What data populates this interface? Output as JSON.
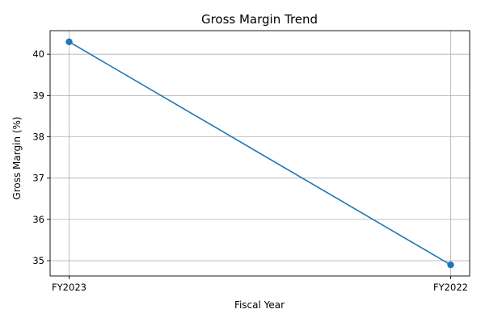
{
  "chart_data": {
    "type": "line",
    "title": "Gross Margin Trend",
    "xlabel": "Fiscal Year",
    "ylabel": "Gross Margin (%)",
    "categories": [
      "FY2023",
      "FY2022"
    ],
    "series": [
      {
        "values": [
          40.3,
          34.9
        ],
        "color": "#1f77b4",
        "marker": "circle"
      }
    ],
    "ylim": [
      34.63,
      40.57
    ],
    "yticks": [
      35,
      36,
      37,
      38,
      39,
      40
    ],
    "grid": true,
    "legend": "none"
  }
}
